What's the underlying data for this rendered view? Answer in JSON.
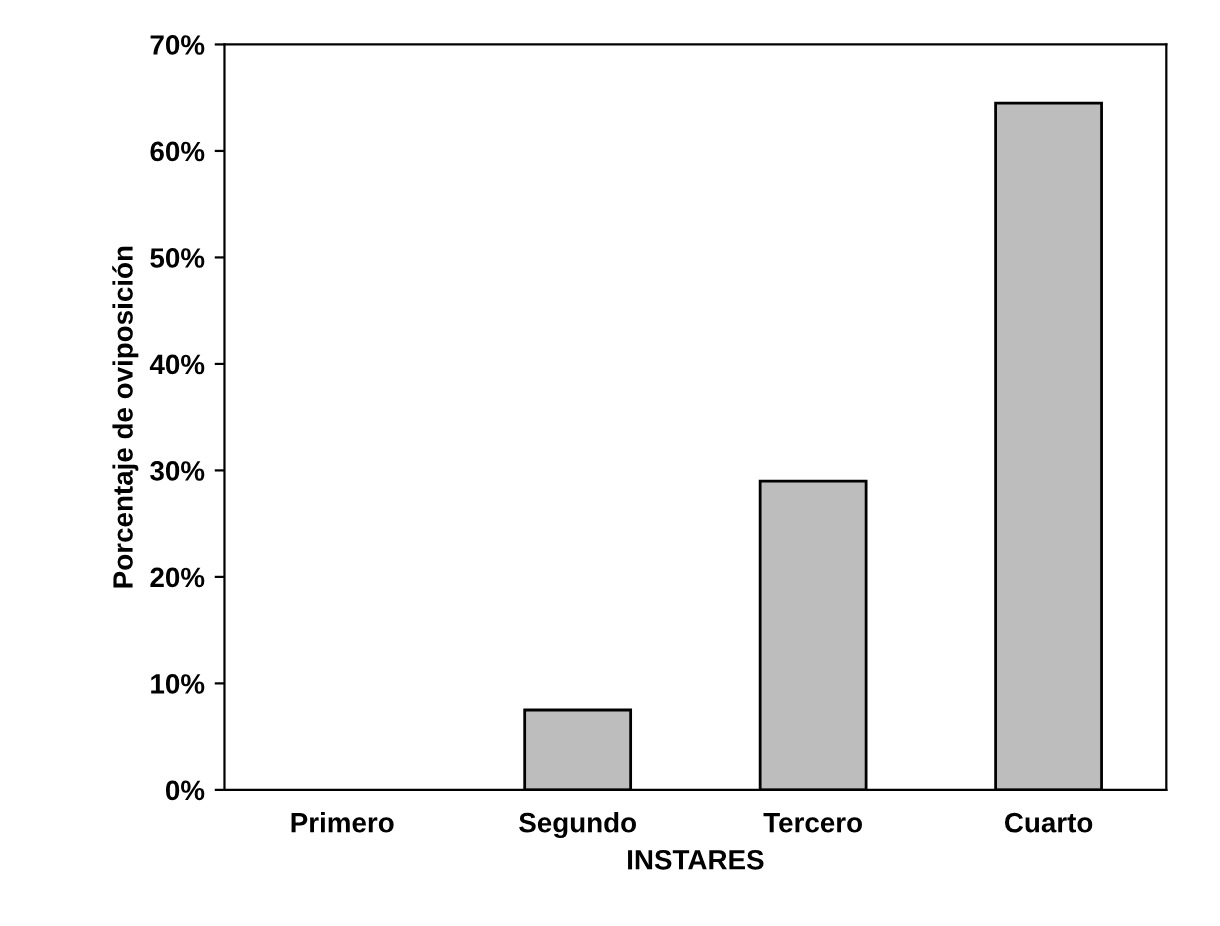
{
  "chart_data": {
    "type": "bar",
    "categories": [
      "Primero",
      "Segundo",
      "Tercero",
      "Cuarto"
    ],
    "values": [
      0,
      7.5,
      29,
      64.5
    ],
    "color": "#bdbdbd",
    "xlabel": "INSTARES",
    "ylabel": "Porcentaje de oviposición",
    "ylim": [
      0,
      70
    ],
    "yticks": [
      {
        "value": 0,
        "label": "0%"
      },
      {
        "value": 10,
        "label": "10%"
      },
      {
        "value": 20,
        "label": "20%"
      },
      {
        "value": 30,
        "label": "30%"
      },
      {
        "value": 40,
        "label": "40%"
      },
      {
        "value": 50,
        "label": "50%"
      },
      {
        "value": 60,
        "label": "60%"
      },
      {
        "value": 70,
        "label": "70%"
      }
    ],
    "grid": false,
    "legend": false
  }
}
